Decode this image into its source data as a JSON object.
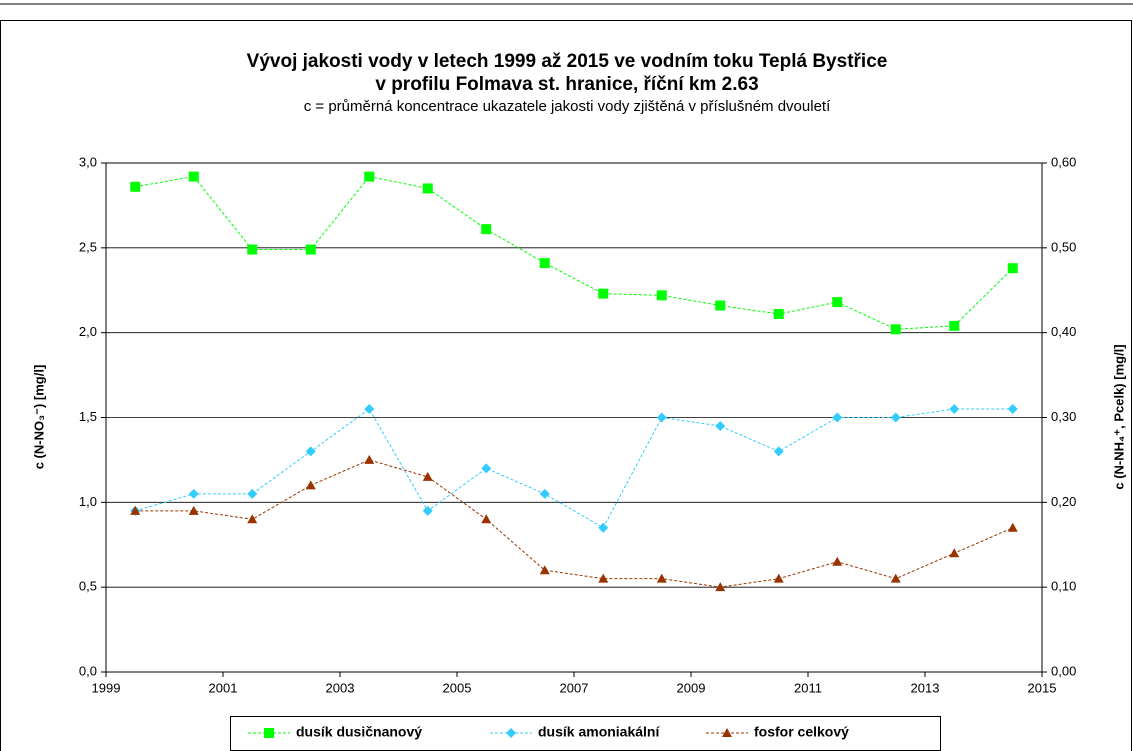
{
  "chart_data": {
    "type": "line",
    "title": "Vývoj jakosti vody v letech 1999 až 2015 ve vodním toku Teplá Bystřice",
    "subtitle": "v profilu Folmava st. hranice, říční km 2.63",
    "note": "c = průměrná koncentrace ukazatele jakosti vody zjištěná v příslušném dvouletí",
    "ylabel": "c (N-NO₃⁻) [mg/l]",
    "y2label": "c (N-NH₄⁺, Pcelk) [mg/l]",
    "x": [
      1999.5,
      2000.5,
      2001.5,
      2002.5,
      2003.5,
      2004.5,
      2005.5,
      2006.5,
      2007.5,
      2008.5,
      2009.5,
      2010.5,
      2011.5,
      2012.5,
      2013.5,
      2014.5
    ],
    "xlim": [
      1999,
      2015
    ],
    "xticks": [
      1999,
      2001,
      2003,
      2005,
      2007,
      2009,
      2011,
      2013,
      2015
    ],
    "ylim": [
      0,
      3
    ],
    "yticks": [
      {
        "value": 0,
        "label": "0,0"
      },
      {
        "value": 0.5,
        "label": "0,5"
      },
      {
        "value": 1,
        "label": "1,0"
      },
      {
        "value": 1.5,
        "label": "1,5"
      },
      {
        "value": 2,
        "label": "2,0"
      },
      {
        "value": 2.5,
        "label": "2,5"
      },
      {
        "value": 3,
        "label": "3,0"
      }
    ],
    "y2lim": [
      0,
      0.6
    ],
    "y2ticks": [
      {
        "value": 0,
        "label": "0,00"
      },
      {
        "value": 0.1,
        "label": "0,10"
      },
      {
        "value": 0.2,
        "label": "0,20"
      },
      {
        "value": 0.3,
        "label": "0,30"
      },
      {
        "value": 0.4,
        "label": "0,40"
      },
      {
        "value": 0.5,
        "label": "0,50"
      },
      {
        "value": 0.6,
        "label": "0,60"
      }
    ],
    "grid": true,
    "legend": "bottom",
    "series": [
      {
        "name": "dusík dusičnanový",
        "color": "#00ff00",
        "marker": "square",
        "values": [
          2.86,
          2.92,
          2.49,
          2.49,
          2.92,
          2.85,
          2.61,
          2.41,
          2.23,
          2.22,
          2.16,
          2.11,
          2.18,
          2.02,
          2.04,
          2.38
        ]
      },
      {
        "name": "dusík amoniakální",
        "color": "#33ccff",
        "marker": "diamond",
        "axis": "y2",
        "values": [
          0.19,
          0.21,
          0.21,
          0.26,
          0.31,
          0.19,
          0.24,
          0.21,
          0.17,
          0.3,
          0.29,
          0.26,
          0.3,
          0.3,
          0.31,
          0.31
        ]
      },
      {
        "name": "fosfor celkový",
        "color": "#993300",
        "marker": "triangle",
        "axis": "y2",
        "values": [
          0.19,
          0.19,
          0.18,
          0.22,
          0.25,
          0.23,
          0.18,
          0.12,
          0.11,
          0.11,
          0.1,
          0.11,
          0.13,
          0.11,
          0.14,
          0.17
        ]
      }
    ]
  }
}
